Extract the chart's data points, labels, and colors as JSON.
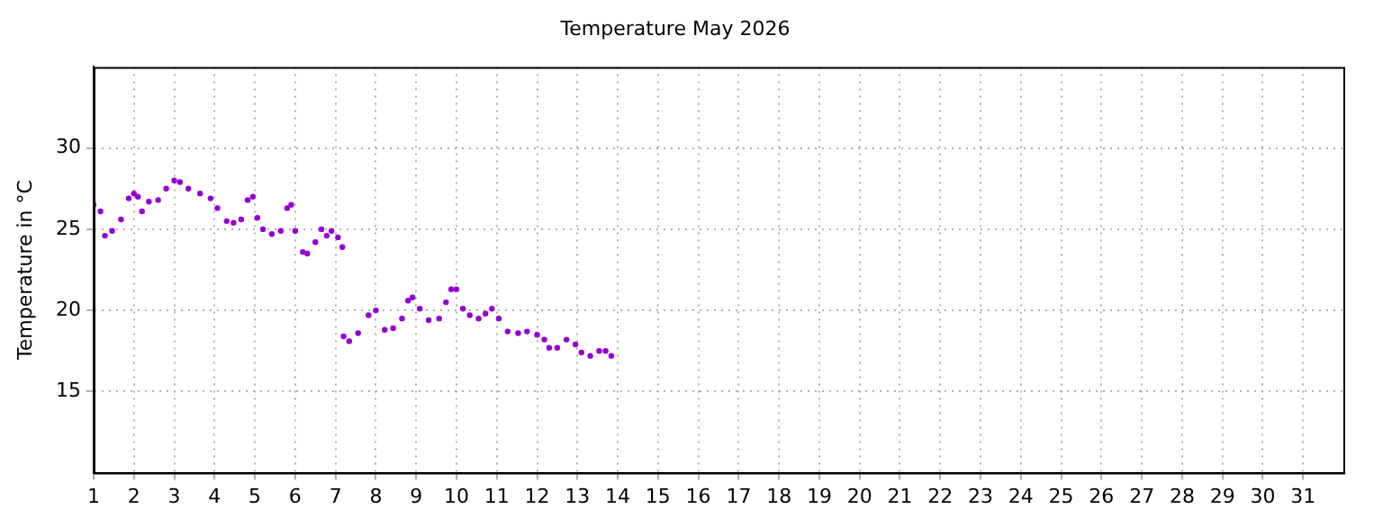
{
  "chart_data": {
    "type": "scatter",
    "title": "Temperature May 2026",
    "ylabel": "Temperature in °C",
    "xlim": [
      1,
      32
    ],
    "xticks": [
      1,
      2,
      3,
      4,
      5,
      6,
      7,
      8,
      9,
      10,
      11,
      12,
      13,
      14,
      15,
      16,
      17,
      18,
      19,
      20,
      21,
      22,
      23,
      24,
      25,
      26,
      27,
      28,
      29,
      30,
      31
    ],
    "ylim": [
      10,
      35
    ],
    "yticks": [
      15,
      20,
      25,
      30
    ],
    "grid": true,
    "legend": false,
    "marker": "circle",
    "series": [
      {
        "color": "#9400d3",
        "x": [
          1.0,
          1.17,
          1.28,
          1.46,
          1.68,
          1.87,
          2.0,
          2.1,
          2.2,
          2.37,
          2.6,
          2.8,
          3.0,
          3.14,
          3.35,
          3.64,
          3.9,
          4.07,
          4.3,
          4.47,
          4.66,
          4.82,
          4.95,
          5.06,
          5.2,
          5.42,
          5.64,
          5.8,
          5.9,
          6.0,
          6.19,
          6.3,
          6.5,
          6.65,
          6.78,
          6.9,
          7.06,
          7.17,
          7.2,
          7.34,
          7.56,
          7.82,
          8.0,
          8.22,
          8.43,
          8.65,
          8.8,
          8.91,
          9.09,
          9.31,
          9.57,
          9.74,
          9.87,
          10.0,
          10.16,
          10.33,
          10.55,
          10.72,
          10.88,
          11.05,
          11.27,
          11.53,
          11.75,
          12.0,
          12.18,
          12.3,
          12.5,
          12.73,
          12.95,
          13.1,
          13.32,
          13.54,
          13.7,
          13.84
        ],
        "values": [
          26.5,
          26.1,
          24.6,
          24.9,
          25.6,
          26.9,
          27.2,
          27.0,
          26.1,
          26.7,
          26.8,
          27.5,
          28.0,
          27.9,
          27.5,
          27.2,
          26.9,
          26.3,
          25.5,
          25.4,
          25.6,
          26.8,
          27.0,
          25.7,
          25.0,
          24.7,
          24.9,
          26.3,
          26.5,
          24.9,
          23.6,
          23.5,
          24.2,
          25.0,
          24.6,
          24.9,
          24.5,
          23.9,
          18.4,
          18.1,
          18.6,
          19.7,
          20.0,
          18.8,
          18.9,
          19.5,
          20.6,
          20.8,
          20.1,
          19.4,
          19.5,
          20.5,
          21.3,
          21.3,
          20.1,
          19.7,
          19.5,
          19.8,
          20.1,
          19.5,
          18.7,
          18.6,
          18.7,
          18.5,
          18.2,
          17.7,
          17.7,
          18.2,
          17.9,
          17.4,
          17.2,
          17.5,
          17.5,
          17.2
        ]
      }
    ]
  }
}
